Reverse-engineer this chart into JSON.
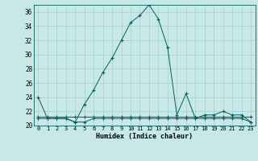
{
  "title": "",
  "xlabel": "Humidex (Indice chaleur)",
  "background_color": "#c8e8e8",
  "grid_color": "#a0d0d0",
  "line_color": "#006060",
  "x_values": [
    0,
    1,
    2,
    3,
    4,
    5,
    6,
    7,
    8,
    9,
    10,
    11,
    12,
    13,
    14,
    15,
    16,
    17,
    18,
    19,
    20,
    21,
    22,
    23
  ],
  "y_line1": [
    24,
    21,
    21,
    21,
    20.5,
    23,
    25,
    27.5,
    29.5,
    32,
    34.5,
    35.5,
    37,
    35,
    31,
    21.5,
    24.5,
    21,
    21.5,
    21.5,
    22,
    21.5,
    21.5,
    20.5
  ],
  "y_line2": [
    21.2,
    21.2,
    21.2,
    21.2,
    21.2,
    21.2,
    21.2,
    21.2,
    21.2,
    21.2,
    21.2,
    21.2,
    21.2,
    21.2,
    21.2,
    21.2,
    21.2,
    21.2,
    21.2,
    21.2,
    21.2,
    21.2,
    21.2,
    21.2
  ],
  "y_line3": [
    21.0,
    21.0,
    21.0,
    21.0,
    20.5,
    20.5,
    21.0,
    21.0,
    21.0,
    21.0,
    21.0,
    21.0,
    21.0,
    21.0,
    21.0,
    21.0,
    21.0,
    21.0,
    21.0,
    21.0,
    21.0,
    21.0,
    21.0,
    20.5
  ],
  "ylim": [
    20,
    37
  ],
  "yticks": [
    20,
    22,
    24,
    26,
    28,
    30,
    32,
    34,
    36
  ],
  "xlim": [
    -0.5,
    23.5
  ],
  "figwidth": 3.2,
  "figheight": 2.0,
  "dpi": 100
}
